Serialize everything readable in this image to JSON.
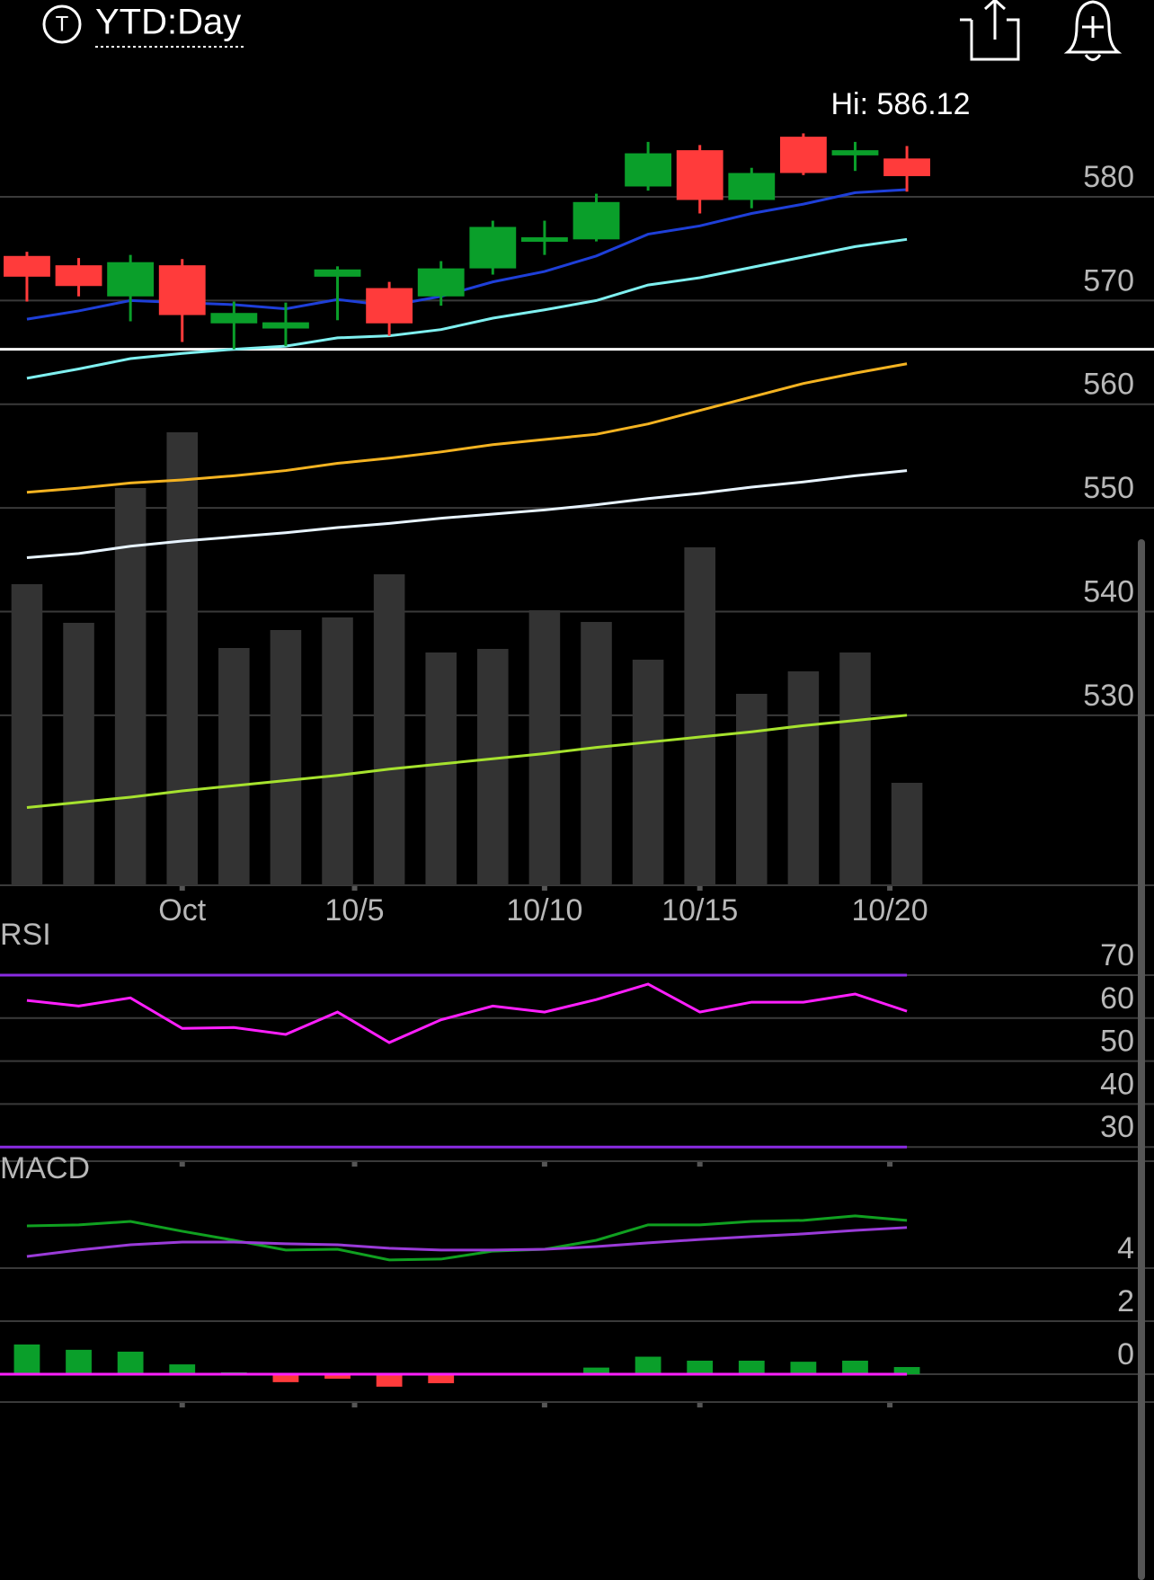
{
  "header": {
    "icon": "T",
    "title": "YTD:Day"
  },
  "chart_data": [
    {
      "type": "candlestick",
      "annotations": [
        "Hi: 586.12"
      ],
      "x": [
        0,
        1,
        2,
        3,
        4,
        5,
        6,
        7,
        8,
        9,
        10,
        11,
        12,
        13,
        14,
        15,
        16,
        17
      ],
      "xlim": [
        -0.52,
        19.36
      ],
      "xticks": [
        {
          "value": 3,
          "label": "Oct"
        },
        {
          "value": 6.33,
          "label": "10/5"
        },
        {
          "value": 10,
          "label": "10/10"
        },
        {
          "value": 13,
          "label": "10/15"
        },
        {
          "value": 16.67,
          "label": "10/20"
        }
      ],
      "ylim": [
        513.6,
        592
      ],
      "yticks": [
        530,
        540,
        550,
        560,
        570,
        580
      ],
      "grid": true,
      "up_color": "#0a9f2a",
      "down_color": "#ff3b3b",
      "open": [
        574.3,
        573.4,
        570.4,
        573.4,
        567.8,
        567.3,
        572.3,
        571.2,
        570.4,
        573.1,
        575.8,
        575.9,
        581.0,
        584.5,
        579.7,
        585.8,
        584.0,
        583.7
      ],
      "high": [
        574.7,
        574.1,
        574.4,
        574.0,
        569.9,
        569.8,
        573.3,
        571.8,
        573.8,
        577.7,
        577.7,
        580.3,
        585.3,
        585.0,
        582.8,
        586.12,
        585.3,
        584.9
      ],
      "low": [
        569.9,
        570.4,
        568.0,
        566.0,
        565.3,
        565.6,
        568.1,
        566.6,
        569.5,
        572.5,
        574.4,
        575.7,
        580.6,
        578.4,
        578.9,
        582.1,
        582.5,
        580.5
      ],
      "close": [
        572.3,
        571.4,
        573.7,
        568.6,
        568.8,
        567.9,
        573.0,
        567.8,
        573.1,
        577.1,
        576.1,
        579.5,
        584.2,
        579.7,
        582.3,
        582.3,
        584.5,
        582.0
      ],
      "hline": {
        "value": 565.3,
        "color": "#ffffff"
      },
      "series": [
        {
          "color": "#1e3fd8",
          "values": [
            568.2,
            569.0,
            570.0,
            569.8,
            569.6,
            569.2,
            570.1,
            569.5,
            570.4,
            571.8,
            572.8,
            574.3,
            576.4,
            577.2,
            578.4,
            579.3,
            580.4,
            580.7
          ]
        },
        {
          "color": "#7ff0f0",
          "values": [
            562.5,
            563.4,
            564.4,
            564.9,
            565.3,
            565.6,
            566.4,
            566.6,
            567.2,
            568.3,
            569.1,
            570.0,
            571.5,
            572.2,
            573.2,
            574.2,
            575.2,
            575.9
          ]
        },
        {
          "color": "#f4b321",
          "values": [
            551.5,
            551.9,
            552.4,
            552.7,
            553.1,
            553.6,
            554.3,
            554.8,
            555.4,
            556.1,
            556.6,
            557.1,
            558.1,
            559.4,
            560.7,
            562.0,
            563.0,
            563.9
          ]
        },
        {
          "color": "#e8f4ff",
          "values": [
            545.2,
            545.6,
            546.3,
            546.8,
            547.2,
            547.6,
            548.1,
            548.5,
            549.0,
            549.4,
            549.8,
            550.3,
            550.9,
            551.4,
            552.0,
            552.5,
            553.1,
            553.6
          ]
        },
        {
          "color": "#a6e22e",
          "values": [
            521.1,
            521.6,
            522.1,
            522.7,
            523.2,
            523.7,
            524.2,
            524.8,
            525.3,
            525.8,
            526.3,
            526.9,
            527.4,
            527.9,
            528.4,
            529.0,
            529.5,
            530.0
          ]
        }
      ],
      "volume": {
        "color": "#333333",
        "ylim": [
          0,
          904.4
        ],
        "values": [
          335,
          292,
          442,
          504,
          264,
          284,
          298,
          346,
          259,
          263,
          306,
          293,
          251,
          376,
          213,
          238,
          259,
          114
        ]
      }
    },
    {
      "type": "line",
      "title": "RSI",
      "x": [
        0,
        1,
        2,
        3,
        4,
        5,
        6,
        7,
        8,
        9,
        10,
        11,
        12,
        13,
        14,
        15,
        16,
        17
      ],
      "xlim": [
        -0.52,
        19.36
      ],
      "ylim": [
        26.7,
        79.4
      ],
      "yticks": [
        30,
        40,
        50,
        60,
        70
      ],
      "grid": true,
      "levels": [
        70,
        30
      ],
      "level_color": "#8a2be2",
      "series": [
        {
          "color": "#ff1fff",
          "values": [
            64.1,
            62.8,
            64.7,
            57.6,
            57.8,
            56.2,
            61.4,
            54.3,
            59.6,
            62.8,
            61.4,
            64.3,
            67.9,
            61.4,
            63.7,
            63.7,
            65.6,
            61.6
          ]
        }
      ]
    },
    {
      "type": "macd",
      "title": "MACD",
      "x": [
        0,
        1,
        2,
        3,
        4,
        5,
        6,
        7,
        8,
        9,
        10,
        11,
        12,
        13,
        14,
        15,
        16,
        17
      ],
      "xlim": [
        -0.52,
        19.36
      ],
      "ylim": [
        -1.05,
        7.76
      ],
      "yticks": [
        0,
        2,
        4
      ],
      "grid": true,
      "zero_color": "#ff1fff",
      "up_color": "#0a9f2a",
      "down_color": "#ff3b3b",
      "series": [
        {
          "color": "#10a020",
          "values": [
            5.59,
            5.63,
            5.76,
            5.39,
            5.05,
            4.68,
            4.71,
            4.31,
            4.34,
            4.64,
            4.71,
            5.05,
            5.63,
            5.63,
            5.76,
            5.8,
            5.97,
            5.8
          ]
        },
        {
          "color": "#9a3bd8",
          "values": [
            4.44,
            4.68,
            4.88,
            4.98,
            4.98,
            4.92,
            4.88,
            4.75,
            4.68,
            4.68,
            4.71,
            4.81,
            4.95,
            5.08,
            5.19,
            5.29,
            5.42,
            5.53
          ]
        }
      ],
      "histogram": [
        1.12,
        0.92,
        0.85,
        0.37,
        0.07,
        -0.3,
        -0.17,
        -0.47,
        -0.34,
        0.0,
        0.03,
        0.25,
        0.66,
        0.51,
        0.51,
        0.47,
        0.51,
        0.27
      ]
    }
  ]
}
